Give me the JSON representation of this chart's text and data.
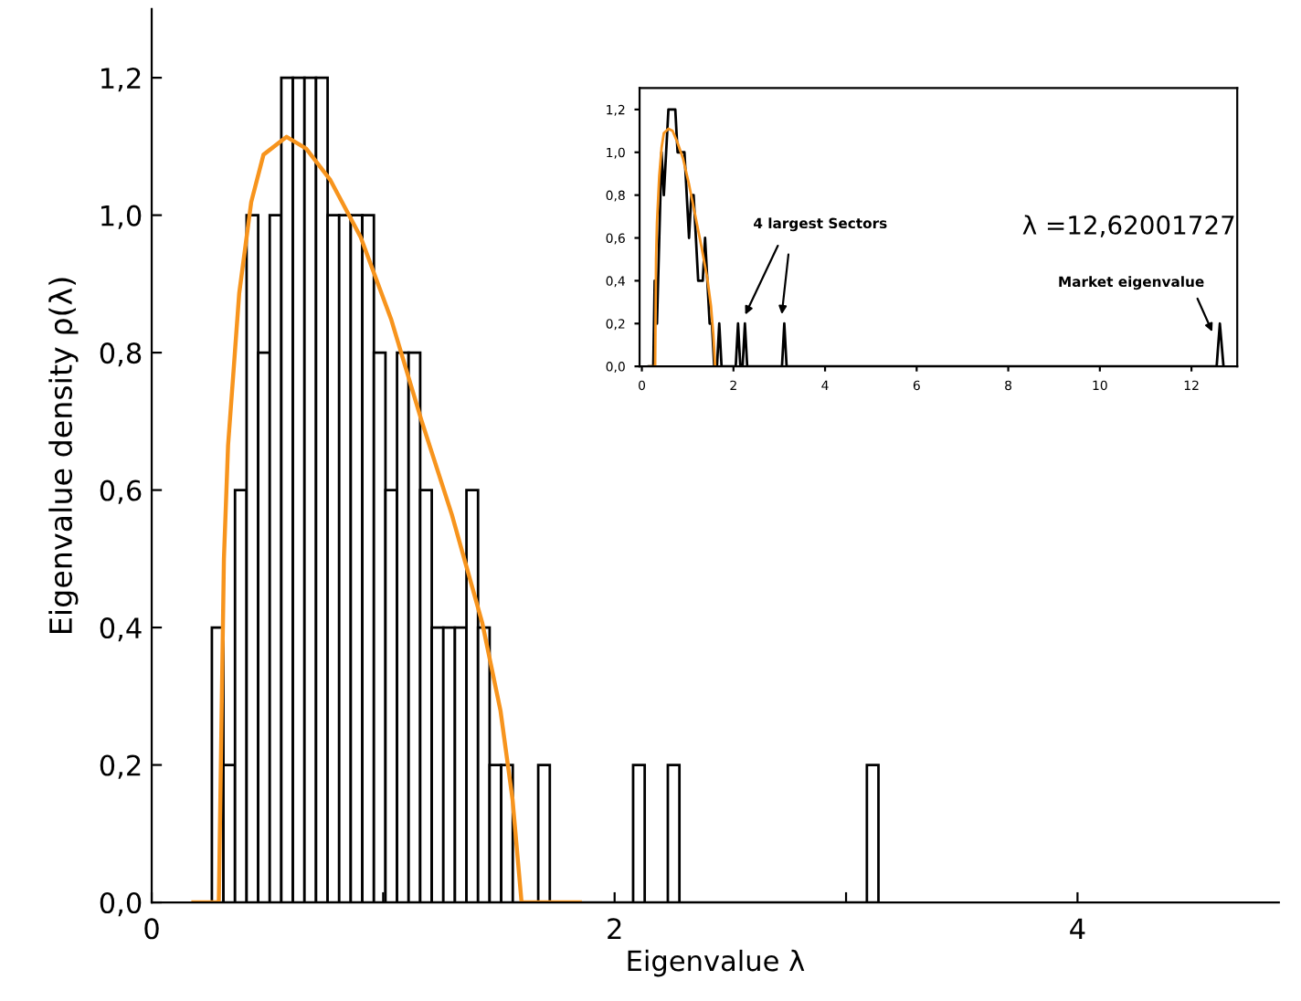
{
  "chart_data": [
    {
      "type": "histogram",
      "xlabel": "Eigenvalue λ",
      "ylabel": "Eigenvalue density ρ(λ)",
      "bins": [
        0.26,
        0.31,
        0.36,
        0.41,
        0.46,
        0.51,
        0.56,
        0.61,
        0.66,
        0.71,
        0.76,
        0.81,
        0.86,
        0.91,
        0.96,
        1.01,
        1.06,
        1.11,
        1.16,
        1.21,
        1.26,
        1.31,
        1.36,
        1.41,
        1.46,
        1.51,
        1.56,
        1.67,
        1.72,
        2.08,
        2.13,
        2.23,
        2.28,
        3.09,
        3.14
      ],
      "values": [
        0.4,
        0.2,
        0.6,
        1.0,
        0.8,
        1.0,
        1.2,
        1.2,
        1.2,
        1.2,
        1.0,
        1.0,
        1.0,
        1.0,
        0.8,
        0.6,
        0.8,
        0.8,
        0.6,
        0.4,
        0.4,
        0.4,
        0.6,
        0.4,
        0.2,
        0.2,
        0,
        0.2,
        0,
        0.2,
        0,
        0.2,
        0,
        0.2
      ],
      "color": "#000000",
      "series": [
        {
          "type": "line",
          "color": "#f7941d",
          "x": [
            0.18,
            0.29,
            0.312,
            0.33,
            0.378,
            0.43,
            0.483,
            0.583,
            0.667,
            0.772,
            0.903,
            1.034,
            1.165,
            1.297,
            1.428,
            1.507,
            1.559,
            1.598,
            1.85
          ],
          "values": [
            0,
            0,
            0.5,
            0.665,
            0.886,
            1.019,
            1.088,
            1.114,
            1.097,
            1.051,
            0.968,
            0.849,
            0.702,
            0.564,
            0.407,
            0.279,
            0.15,
            0,
            0
          ]
        }
      ],
      "xlim": [
        0,
        4.87
      ],
      "ylim": [
        0,
        1.3
      ],
      "xticks": [
        0,
        {
          "value": 1,
          "label": null
        },
        2,
        {
          "value": 3,
          "label": null
        },
        4
      ],
      "yticks": [
        {
          "value": 0,
          "label": "0,0"
        },
        {
          "value": 0.2,
          "label": "0,2"
        },
        {
          "value": 0.4,
          "label": "0,4"
        },
        {
          "value": 0.6,
          "label": "0,6"
        },
        {
          "value": 0.8,
          "label": "0,8"
        },
        {
          "value": 1.0,
          "label": "1,0"
        },
        {
          "value": 1.2,
          "label": "1,2"
        }
      ]
    },
    {
      "type": "line",
      "series": [
        {
          "color": "#000000",
          "x": [
            0.15,
            0.25,
            0.28,
            0.33,
            0.38,
            0.43,
            0.48,
            0.53,
            0.58,
            0.63,
            0.68,
            0.73,
            0.78,
            0.83,
            0.88,
            0.93,
            0.98,
            1.03,
            1.08,
            1.13,
            1.18,
            1.23,
            1.28,
            1.33,
            1.38,
            1.43,
            1.48,
            1.53,
            1.58,
            1.64,
            1.69,
            1.74,
            2.05,
            2.1,
            2.15,
            2.2,
            2.25,
            2.3,
            3.06,
            3.11,
            3.16,
            12.55,
            12.62,
            12.7
          ],
          "values": [
            0,
            0,
            0.4,
            0.2,
            0.6,
            1.0,
            0.8,
            1.0,
            1.2,
            1.2,
            1.2,
            1.2,
            1.0,
            1.0,
            1.0,
            1.0,
            0.8,
            0.6,
            0.8,
            0.8,
            0.6,
            0.4,
            0.4,
            0.4,
            0.6,
            0.4,
            0.2,
            0.2,
            0,
            0,
            0.2,
            0,
            0,
            0.2,
            0,
            0,
            0.2,
            0,
            0,
            0.2,
            0,
            0,
            0.2,
            0
          ]
        },
        {
          "color": "#f7941d",
          "x": [
            0.18,
            0.29,
            0.31,
            0.33,
            0.38,
            0.43,
            0.48,
            0.58,
            0.67,
            0.77,
            0.9,
            1.03,
            1.17,
            1.3,
            1.43,
            1.51,
            1.56,
            1.6
          ],
          "values": [
            0,
            0,
            0.5,
            0.67,
            0.89,
            1.02,
            1.09,
            1.11,
            1.1,
            1.05,
            0.97,
            0.85,
            0.7,
            0.56,
            0.41,
            0.28,
            0.15,
            0
          ]
        }
      ],
      "annotations": [
        {
          "text": "4 largest Sectors",
          "x": 2.21,
          "y": 0.22
        },
        "λ =12,62001727",
        {
          "text": "Market eigenvalue",
          "x": 12.5,
          "y": 0.14
        }
      ],
      "xlim": [
        -0.05,
        13
      ],
      "ylim": [
        0,
        1.3
      ],
      "xticks": [
        0,
        2,
        4,
        6,
        8,
        10,
        12
      ],
      "yticks": [
        {
          "value": 0,
          "label": "0,0"
        },
        {
          "value": 0.2,
          "label": "0,2"
        },
        {
          "value": 0.4,
          "label": "0,4"
        },
        {
          "value": 0.6,
          "label": "0,6"
        },
        {
          "value": 0.8,
          "label": "0,8"
        },
        {
          "value": 1.0,
          "label": "1,0"
        },
        {
          "value": 1.2,
          "label": "1,2"
        }
      ]
    }
  ]
}
